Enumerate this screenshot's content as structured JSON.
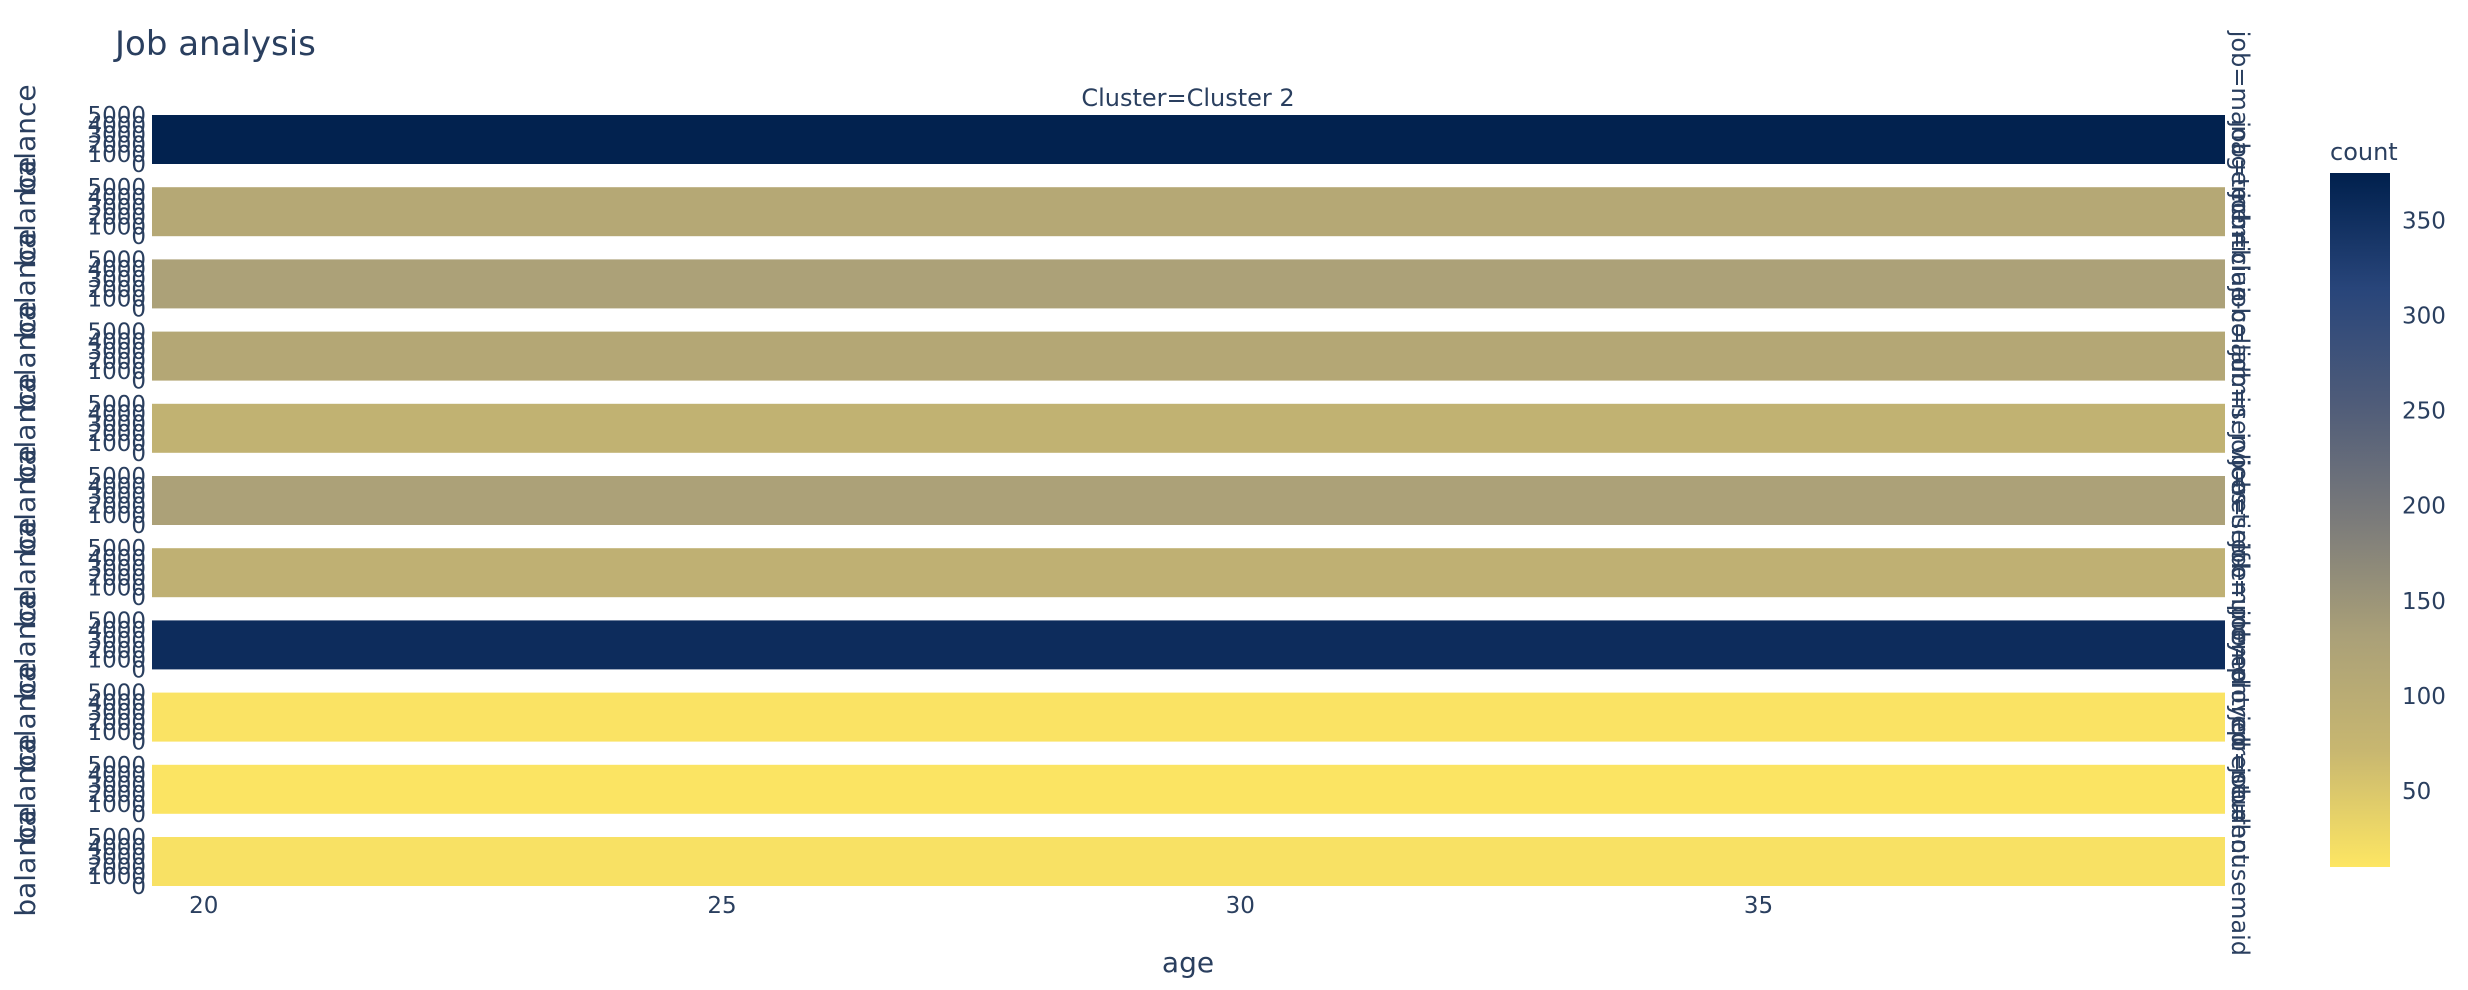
{
  "chart_data": {
    "type": "heatmap",
    "title": "Job analysis",
    "subtitle": "Cluster=Cluster 2",
    "xlabel": "age",
    "ylabel": "balance",
    "x_ticks": [
      20,
      25,
      30,
      35
    ],
    "xlim": [
      19.5,
      39.5
    ],
    "y_ticks": [
      0,
      1000,
      2000,
      3000,
      4000,
      5000
    ],
    "ylim": [
      0,
      5000
    ],
    "facet_row_key": "job",
    "facets": [
      {
        "label": "job=management",
        "count": 372
      },
      {
        "label": "job=technician",
        "count": 110
      },
      {
        "label": "job=blue-collar",
        "count": 128
      },
      {
        "label": "job=admin.",
        "count": 112
      },
      {
        "label": "job=services",
        "count": 85
      },
      {
        "label": "job=retired",
        "count": 128
      },
      {
        "label": "job=self-employed",
        "count": 90
      },
      {
        "label": "job=unemployed",
        "count": 355
      },
      {
        "label": "job=entrepreneur",
        "count": 14
      },
      {
        "label": "job=student",
        "count": 12
      },
      {
        "label": "job=housemaid",
        "count": 16
      }
    ],
    "colorbar": {
      "title": "count",
      "ticks": [
        50,
        100,
        150,
        200,
        250,
        300,
        350
      ],
      "range": [
        10,
        375
      ],
      "colorscale": [
        "#fde663",
        "#c8b770",
        "#aaa078",
        "#7b7b7a",
        "#4f5c79",
        "#28457a",
        "#00204d"
      ]
    },
    "grid": false,
    "legend": "colorbar-right"
  }
}
